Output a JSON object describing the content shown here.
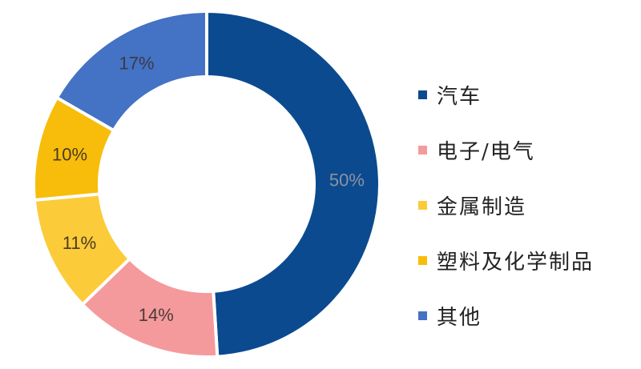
{
  "chart_data": {
    "type": "pie",
    "variant": "donut",
    "title": "",
    "start": "top",
    "direction": "clockwise",
    "legend_position": "right",
    "series": [
      {
        "name": "汽车",
        "value": 50,
        "label": "50%",
        "color": "#0b4a8f",
        "label_color": "#8a93a3"
      },
      {
        "name": "电子/电气",
        "value": 14,
        "label": "14%",
        "color": "#f59a9c",
        "label_color": "#4a3a3a"
      },
      {
        "name": "金属制造",
        "value": 11,
        "label": "11%",
        "color": "#fbcb3a",
        "label_color": "#4a3a20"
      },
      {
        "name": "塑料及化学制品",
        "value": 10,
        "label": "10%",
        "color": "#f8bd0a",
        "label_color": "#4a3a20"
      },
      {
        "name": "其他",
        "value": 17,
        "label": "17%",
        "color": "#4472c4",
        "label_color": "#3a3a4a"
      }
    ]
  }
}
